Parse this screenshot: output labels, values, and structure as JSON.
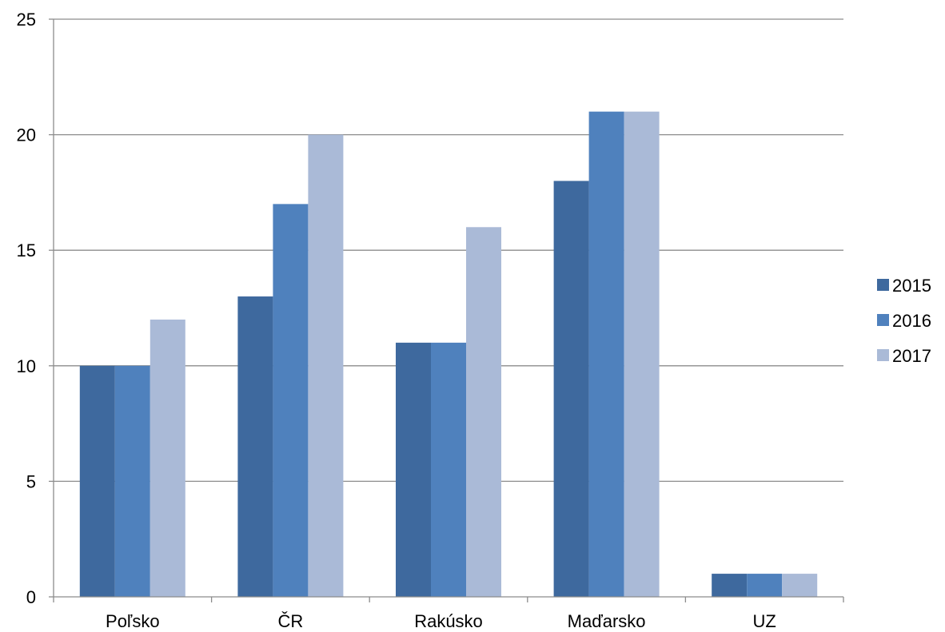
{
  "chart_data": {
    "type": "bar",
    "categories": [
      "Poľsko",
      "ČR",
      "Rakúsko",
      "Maďarsko",
      "UZ"
    ],
    "series": [
      {
        "name": "2015",
        "values": [
          10,
          13,
          11,
          18,
          1
        ],
        "color": "#3E699E"
      },
      {
        "name": "2016",
        "values": [
          10,
          17,
          11,
          21,
          1
        ],
        "color": "#4F81BD"
      },
      {
        "name": "2017",
        "values": [
          12,
          20,
          16,
          21,
          1
        ],
        "color": "#AABAD7"
      }
    ],
    "ylim": [
      0,
      25
    ],
    "yticks": [
      0,
      5,
      10,
      15,
      20,
      25
    ],
    "title": "",
    "xlabel": "",
    "ylabel": "",
    "grid": true,
    "legend_position": "right"
  },
  "colors": {
    "gridline": "#8C8C8C",
    "axis": "#8C8C8C"
  }
}
